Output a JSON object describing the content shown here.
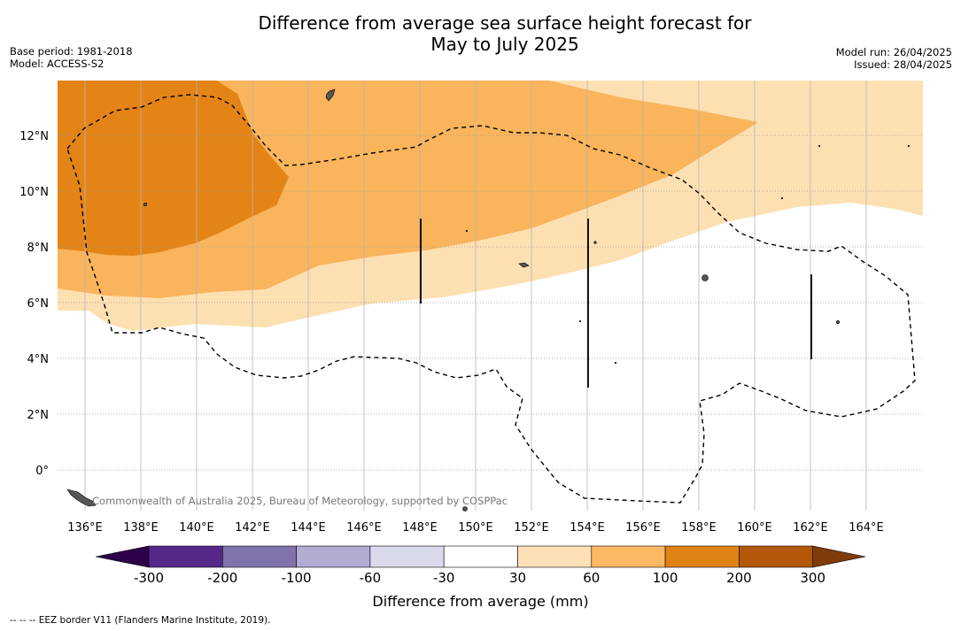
{
  "title": {
    "line1": "Difference from average sea surface height forecast for",
    "line2": "May to July 2025"
  },
  "meta_left": {
    "base_period": "Base period: 1981-2018",
    "model": "Model: ACCESS-S2"
  },
  "meta_right": {
    "model_run": "Model run: 26/04/2025",
    "issued": "Issued: 28/04/2025"
  },
  "map": {
    "lon_ticks": [
      "136°E",
      "138°E",
      "140°E",
      "142°E",
      "144°E",
      "146°E",
      "148°E",
      "150°E",
      "152°E",
      "154°E",
      "156°E",
      "158°E",
      "160°E",
      "162°E",
      "164°E"
    ],
    "lat_ticks": [
      "12°N",
      "10°N",
      "8°N",
      "6°N",
      "4°N",
      "2°N",
      "0°"
    ],
    "copyright": "Commonwealth of Australia 2025, Bureau of Meteorology, supported by COSPPac",
    "fill_colors": {
      "30_60": "#fde0b2",
      "60_100": "#f9b45c",
      "100_200": "#e48417"
    }
  },
  "colorbar": {
    "label": "Difference from average (mm)",
    "ticks": [
      "-300",
      "-200",
      "-100",
      "-60",
      "-30",
      "30",
      "60",
      "100",
      "200",
      "300"
    ],
    "colors": [
      "#2d004b",
      "#542788",
      "#8073ac",
      "#b2abd2",
      "#d8daeb",
      "#ffffff",
      "#fee0b6",
      "#fdb863",
      "#e08214",
      "#b35806",
      "#7f3b08"
    ]
  },
  "footnote": "-- -- -- EEZ border V11 (Flanders Marine Institute, 2019)."
}
